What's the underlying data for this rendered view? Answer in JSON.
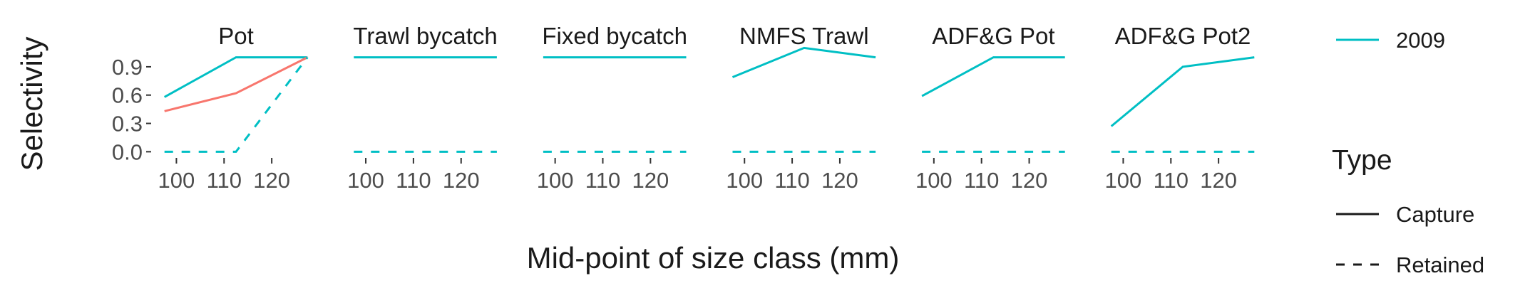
{
  "chart_data": {
    "type": "line",
    "ylabel": "Selectivity",
    "xlabel": "Mid-point of size class (mm)",
    "x": [
      97.5,
      112.5,
      127.5
    ],
    "xticks": [
      100,
      110,
      120
    ],
    "yticks": [
      0.0,
      0.3,
      0.6,
      0.9
    ],
    "ytick_labels": [
      "0.0",
      "0.3",
      "0.6",
      "0.9"
    ],
    "xlim": [
      95,
      130
    ],
    "ylim": [
      -0.05,
      1.05
    ],
    "grid": false,
    "colors": {
      "2009": "#00BFC4",
      "other_year": "#F8766D"
    },
    "panels": [
      {
        "title": "Pot",
        "series": [
          {
            "year": "2009",
            "type": "Capture",
            "values": [
              0.58,
              1.0,
              1.0
            ]
          },
          {
            "year": "other",
            "type": "Capture",
            "values": [
              0.43,
              0.62,
              1.0
            ]
          },
          {
            "year": "2009",
            "type": "Retained",
            "values": [
              0.0,
              0.0,
              1.0
            ]
          }
        ]
      },
      {
        "title": "Trawl bycatch",
        "series": [
          {
            "year": "2009",
            "type": "Capture",
            "values": [
              1.0,
              1.0,
              1.0
            ]
          },
          {
            "year": "2009",
            "type": "Retained",
            "values": [
              0.0,
              0.0,
              0.0
            ]
          }
        ]
      },
      {
        "title": "Fixed bycatch",
        "series": [
          {
            "year": "2009",
            "type": "Capture",
            "values": [
              1.0,
              1.0,
              1.0
            ]
          },
          {
            "year": "2009",
            "type": "Retained",
            "values": [
              0.0,
              0.0,
              0.0
            ]
          }
        ]
      },
      {
        "title": "NMFS Trawl",
        "series": [
          {
            "year": "2009",
            "type": "Capture",
            "values": [
              0.79,
              1.1,
              1.0
            ]
          },
          {
            "year": "2009",
            "type": "Retained",
            "values": [
              0.0,
              0.0,
              0.0
            ]
          }
        ]
      },
      {
        "title": "ADF&G Pot",
        "series": [
          {
            "year": "2009",
            "type": "Capture",
            "values": [
              0.59,
              1.0,
              1.0
            ]
          },
          {
            "year": "2009",
            "type": "Retained",
            "values": [
              0.0,
              0.0,
              0.0
            ]
          }
        ]
      },
      {
        "title": "ADF&G Pot2",
        "series": [
          {
            "year": "2009",
            "type": "Capture",
            "values": [
              0.27,
              0.9,
              1.0
            ]
          },
          {
            "year": "2009",
            "type": "Retained",
            "values": [
              0.0,
              0.0,
              0.0
            ]
          }
        ]
      }
    ],
    "legend": {
      "placement": "right",
      "color_entries": [
        "2009"
      ],
      "type_title": "Type",
      "type_entries": [
        "Capture",
        "Retained"
      ]
    }
  }
}
